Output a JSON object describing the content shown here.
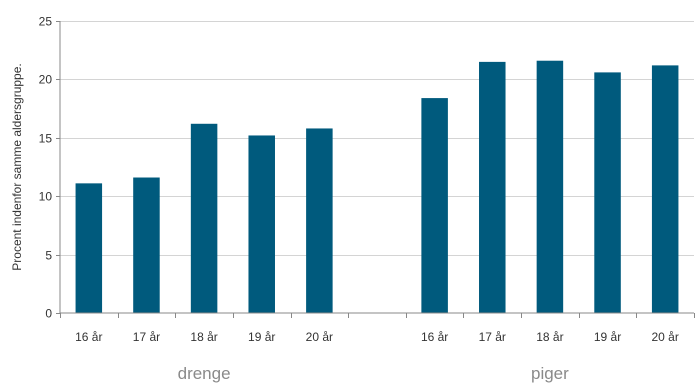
{
  "chart_data": {
    "type": "bar",
    "title": "",
    "xlabel": "",
    "ylabel": "Procent indenfor samme aldersgruppe.",
    "ylim": [
      0,
      25
    ],
    "yticks": [
      0,
      5,
      10,
      15,
      20,
      25
    ],
    "grid": true,
    "bar_color": "#005a7d",
    "grid_color": "#d4d4d4",
    "groups": [
      {
        "name": "drenge",
        "categories": [
          "16 år",
          "17 år",
          "18 år",
          "19 år",
          "20 år"
        ],
        "values": [
          11.1,
          11.6,
          16.2,
          15.2,
          15.8
        ]
      },
      {
        "name": "piger",
        "categories": [
          "16 år",
          "17 år",
          "18 år",
          "19 år",
          "20 år"
        ],
        "values": [
          18.4,
          21.5,
          21.6,
          20.6,
          21.2
        ]
      }
    ]
  }
}
